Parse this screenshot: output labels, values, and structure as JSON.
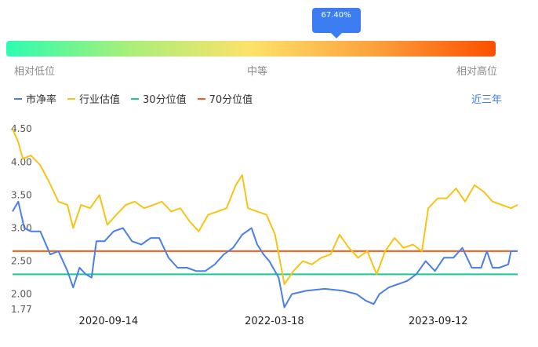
{
  "indicator": {
    "tooltip_value": "67.40%",
    "percentile": 0.674,
    "scale_labels": {
      "low": "相对低位",
      "mid": "中等",
      "high": "相对高位"
    }
  },
  "period_selector": {
    "label": "近三年"
  },
  "colors": {
    "pb": "#4a7fe6",
    "industry": "#f7c315",
    "p30": "#19c993",
    "p70": "#fa5a14",
    "accent": "#3c7df1"
  },
  "chart_data": {
    "type": "line",
    "legend": [
      "市净率",
      "行业估值",
      "30分位值",
      "70分位值"
    ],
    "y_ticks": [
      "1.77",
      "2.00",
      "2.50",
      "3.00",
      "3.50",
      "4.00",
      "4.50"
    ],
    "ylim": [
      1.77,
      4.55
    ],
    "x_ticks": [
      "2020-09-14",
      "2022-03-18",
      "2023-09-12"
    ],
    "x_range": [
      "2019-11-01",
      "2024-06-01"
    ],
    "series": [
      {
        "name": "市净率",
        "key": "pb",
        "points": [
          [
            "2019-11-01",
            3.25
          ],
          [
            "2019-11-20",
            3.4
          ],
          [
            "2019-12-10",
            3.0
          ],
          [
            "2020-01-01",
            2.95
          ],
          [
            "2020-02-01",
            2.95
          ],
          [
            "2020-03-05",
            2.6
          ],
          [
            "2020-04-01",
            2.65
          ],
          [
            "2020-05-01",
            2.35
          ],
          [
            "2020-05-20",
            2.1
          ],
          [
            "2020-06-10",
            2.4
          ],
          [
            "2020-07-01",
            2.3
          ],
          [
            "2020-07-20",
            2.25
          ],
          [
            "2020-08-05",
            2.8
          ],
          [
            "2020-09-01",
            2.8
          ],
          [
            "2020-10-01",
            2.95
          ],
          [
            "2020-11-01",
            3.0
          ],
          [
            "2020-12-01",
            2.8
          ],
          [
            "2021-01-01",
            2.75
          ],
          [
            "2021-02-01",
            2.85
          ],
          [
            "2021-03-01",
            2.85
          ],
          [
            "2021-04-01",
            2.55
          ],
          [
            "2021-05-01",
            2.4
          ],
          [
            "2021-06-01",
            2.4
          ],
          [
            "2021-07-01",
            2.35
          ],
          [
            "2021-08-01",
            2.35
          ],
          [
            "2021-09-01",
            2.45
          ],
          [
            "2021-10-01",
            2.6
          ],
          [
            "2021-11-01",
            2.7
          ],
          [
            "2021-12-01",
            2.9
          ],
          [
            "2022-01-01",
            3.0
          ],
          [
            "2022-01-20",
            2.75
          ],
          [
            "2022-02-10",
            2.6
          ],
          [
            "2022-03-01",
            2.5
          ],
          [
            "2022-04-01",
            2.25
          ],
          [
            "2022-04-20",
            1.8
          ],
          [
            "2022-05-15",
            2.0
          ],
          [
            "2022-07-01",
            2.05
          ],
          [
            "2022-09-01",
            2.08
          ],
          [
            "2022-11-01",
            2.05
          ],
          [
            "2022-12-15",
            2.0
          ],
          [
            "2023-01-15",
            1.9
          ],
          [
            "2023-02-10",
            1.85
          ],
          [
            "2023-03-01",
            2.0
          ],
          [
            "2023-04-01",
            2.1
          ],
          [
            "2023-05-01",
            2.15
          ],
          [
            "2023-06-01",
            2.2
          ],
          [
            "2023-07-01",
            2.3
          ],
          [
            "2023-08-01",
            2.5
          ],
          [
            "2023-09-01",
            2.35
          ],
          [
            "2023-10-01",
            2.55
          ],
          [
            "2023-11-01",
            2.55
          ],
          [
            "2023-12-01",
            2.7
          ],
          [
            "2024-01-01",
            2.4
          ],
          [
            "2024-02-01",
            2.4
          ],
          [
            "2024-02-20",
            2.65
          ],
          [
            "2024-03-10",
            2.4
          ],
          [
            "2024-04-01",
            2.4
          ],
          [
            "2024-05-01",
            2.45
          ],
          [
            "2024-05-10",
            2.65
          ],
          [
            "2024-06-01",
            2.65
          ]
        ]
      },
      {
        "name": "行业估值",
        "key": "industry",
        "points": [
          [
            "2019-11-01",
            4.5
          ],
          [
            "2019-11-20",
            4.3
          ],
          [
            "2019-12-05",
            4.05
          ],
          [
            "2020-01-01",
            4.1
          ],
          [
            "2020-02-01",
            3.95
          ],
          [
            "2020-03-01",
            3.7
          ],
          [
            "2020-04-01",
            3.4
          ],
          [
            "2020-05-01",
            3.35
          ],
          [
            "2020-05-20",
            3.0
          ],
          [
            "2020-06-15",
            3.35
          ],
          [
            "2020-07-15",
            3.3
          ],
          [
            "2020-08-15",
            3.5
          ],
          [
            "2020-09-10",
            3.05
          ],
          [
            "2020-10-10",
            3.2
          ],
          [
            "2020-11-10",
            3.35
          ],
          [
            "2020-12-10",
            3.4
          ],
          [
            "2021-01-10",
            3.3
          ],
          [
            "2021-02-10",
            3.35
          ],
          [
            "2021-03-10",
            3.4
          ],
          [
            "2021-04-10",
            3.25
          ],
          [
            "2021-05-10",
            3.3
          ],
          [
            "2021-06-10",
            3.1
          ],
          [
            "2021-07-10",
            2.95
          ],
          [
            "2021-08-10",
            3.2
          ],
          [
            "2021-09-10",
            3.25
          ],
          [
            "2021-10-10",
            3.3
          ],
          [
            "2021-11-10",
            3.65
          ],
          [
            "2021-12-01",
            3.8
          ],
          [
            "2021-12-20",
            3.3
          ],
          [
            "2022-01-20",
            3.25
          ],
          [
            "2022-02-20",
            3.2
          ],
          [
            "2022-03-20",
            2.9
          ],
          [
            "2022-04-20",
            2.15
          ],
          [
            "2022-05-20",
            2.35
          ],
          [
            "2022-06-20",
            2.5
          ],
          [
            "2022-07-20",
            2.45
          ],
          [
            "2022-08-20",
            2.55
          ],
          [
            "2022-09-20",
            2.6
          ],
          [
            "2022-10-20",
            2.9
          ],
          [
            "2022-11-20",
            2.7
          ],
          [
            "2022-12-20",
            2.55
          ],
          [
            "2023-01-20",
            2.65
          ],
          [
            "2023-02-20",
            2.3
          ],
          [
            "2023-03-20",
            2.65
          ],
          [
            "2023-04-20",
            2.85
          ],
          [
            "2023-05-20",
            2.7
          ],
          [
            "2023-06-20",
            2.75
          ],
          [
            "2023-07-20",
            2.65
          ],
          [
            "2023-08-10",
            3.3
          ],
          [
            "2023-09-10",
            3.45
          ],
          [
            "2023-10-10",
            3.45
          ],
          [
            "2023-11-10",
            3.6
          ],
          [
            "2023-12-10",
            3.4
          ],
          [
            "2024-01-10",
            3.65
          ],
          [
            "2024-02-10",
            3.55
          ],
          [
            "2024-03-10",
            3.4
          ],
          [
            "2024-04-10",
            3.35
          ],
          [
            "2024-05-10",
            3.3
          ],
          [
            "2024-06-01",
            3.35
          ]
        ]
      },
      {
        "name": "30分位值",
        "key": "p30",
        "points": [
          [
            "2019-11-01",
            2.3
          ],
          [
            "2024-06-01",
            2.3
          ]
        ]
      },
      {
        "name": "70分位值",
        "key": "p70",
        "points": [
          [
            "2019-11-01",
            2.65
          ],
          [
            "2024-06-01",
            2.65
          ]
        ]
      }
    ]
  }
}
